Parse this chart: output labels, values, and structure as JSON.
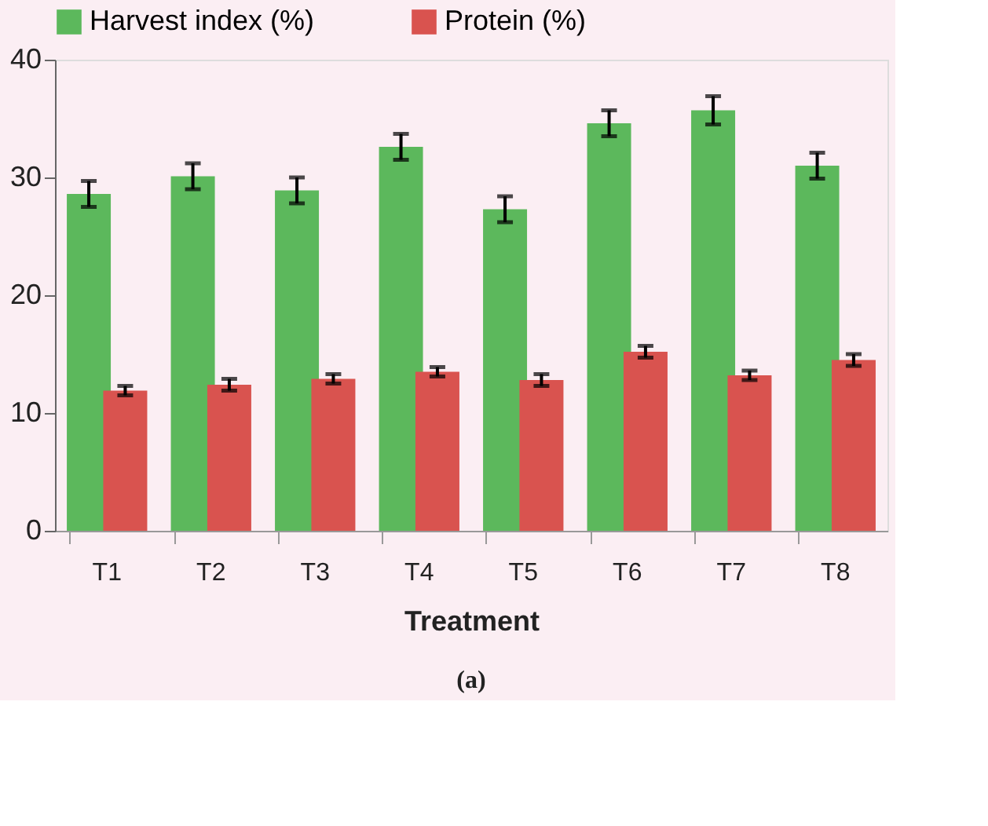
{
  "chart_data": {
    "type": "bar",
    "xlabel": "Treatment",
    "categories": [
      "T1",
      "T2",
      "T3",
      "T4",
      "T5",
      "T6",
      "T7",
      "T8"
    ],
    "series": [
      {
        "name": "Harvest index (%)",
        "color": "#5cb85c",
        "values": [
          28.6,
          30.1,
          28.9,
          32.6,
          27.3,
          34.6,
          35.7,
          31.0
        ],
        "errors": [
          1.1,
          1.1,
          1.1,
          1.1,
          1.1,
          1.1,
          1.2,
          1.1
        ]
      },
      {
        "name": "Protein (%)",
        "color": "#d9534f",
        "values": [
          11.9,
          12.4,
          12.9,
          13.5,
          12.8,
          15.2,
          13.2,
          14.5
        ],
        "errors": [
          0.4,
          0.5,
          0.4,
          0.4,
          0.5,
          0.5,
          0.4,
          0.5
        ]
      }
    ],
    "ylim": [
      0,
      40
    ],
    "yticks": [
      0,
      10,
      20,
      30,
      40
    ],
    "grid": false,
    "legend": "top",
    "annotations": [
      "(a)"
    ]
  }
}
